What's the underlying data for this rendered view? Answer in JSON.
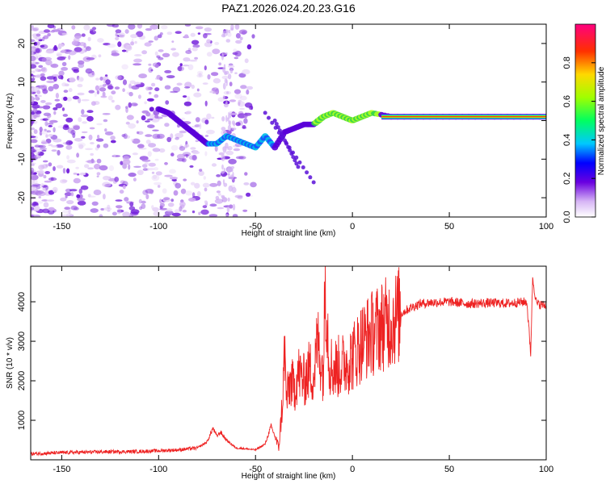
{
  "chart_data": [
    {
      "type": "heatmap",
      "title": "PAZ1.2026.024.20.23.G16",
      "xlabel": "Height of straight line (km)",
      "ylabel": "Frequency (Hz)",
      "xlim": [
        -166,
        100
      ],
      "ylim": [
        -25,
        25
      ],
      "xticks": [
        -150,
        -100,
        -50,
        0,
        50,
        100
      ],
      "yticks": [
        -20,
        -10,
        0,
        10,
        20
      ],
      "colorbar": {
        "label": "Normalized spectral amplitude",
        "range": [
          0,
          1
        ],
        "ticks": [
          "0.0",
          "0.2",
          "0.4",
          "0.6",
          "0.8"
        ]
      },
      "ridge": [
        {
          "x": -100,
          "y": 3
        },
        {
          "x": -95,
          "y": 2
        },
        {
          "x": -90,
          "y": 0
        },
        {
          "x": -85,
          "y": -2
        },
        {
          "x": -80,
          "y": -4
        },
        {
          "x": -75,
          "y": -6
        },
        {
          "x": -70,
          "y": -6
        },
        {
          "x": -65,
          "y": -4
        },
        {
          "x": -60,
          "y": -5
        },
        {
          "x": -55,
          "y": -6
        },
        {
          "x": -50,
          "y": -7
        },
        {
          "x": -45,
          "y": -4
        },
        {
          "x": -40,
          "y": -7
        },
        {
          "x": -35,
          "y": -3
        },
        {
          "x": -30,
          "y": -2
        },
        {
          "x": -25,
          "y": -1
        },
        {
          "x": -20,
          "y": -1
        },
        {
          "x": -15,
          "y": 1
        },
        {
          "x": -10,
          "y": 2
        },
        {
          "x": -5,
          "y": 1
        },
        {
          "x": 0,
          "y": 0
        },
        {
          "x": 5,
          "y": 1
        },
        {
          "x": 10,
          "y": 2
        },
        {
          "x": 20,
          "y": 1
        },
        {
          "x": 40,
          "y": 1
        },
        {
          "x": 60,
          "y": 1
        },
        {
          "x": 80,
          "y": 1
        },
        {
          "x": 100,
          "y": 1
        }
      ]
    },
    {
      "type": "line",
      "xlabel": "Height of straight line (km)",
      "ylabel": "SNR (10 * v/v)",
      "xlim": [
        -166,
        100
      ],
      "ylim": [
        0,
        4900
      ],
      "xticks": [
        -150,
        -100,
        -50,
        0,
        50,
        100
      ],
      "yticks": [
        1000,
        2000,
        3000,
        4000
      ],
      "series": [
        {
          "name": "SNR",
          "color": "#ee2222",
          "x": [
            -166,
            -150,
            -130,
            -110,
            -90,
            -80,
            -75,
            -72,
            -70,
            -68,
            -65,
            -60,
            -55,
            -50,
            -45,
            -42,
            -40,
            -38,
            -36,
            -35,
            -34,
            -32,
            -30,
            -28,
            -25,
            -22,
            -20,
            -18,
            -15,
            -14,
            -12,
            -10,
            -5,
            0,
            5,
            10,
            15,
            20,
            25,
            30,
            35,
            40,
            50,
            60,
            70,
            80,
            90,
            92,
            93,
            95,
            100
          ],
          "values": [
            150,
            180,
            200,
            210,
            250,
            300,
            450,
            800,
            600,
            700,
            500,
            300,
            280,
            250,
            400,
            850,
            600,
            300,
            1500,
            2800,
            1500,
            2000,
            1800,
            2200,
            2000,
            2300,
            2100,
            3000,
            2200,
            4700,
            2500,
            2300,
            2400,
            2600,
            3000,
            3200,
            3400,
            3500,
            3700,
            3850,
            3950,
            3980,
            4000,
            3950,
            3970,
            3960,
            4000,
            2700,
            4600,
            3950,
            3900
          ]
        }
      ]
    }
  ]
}
